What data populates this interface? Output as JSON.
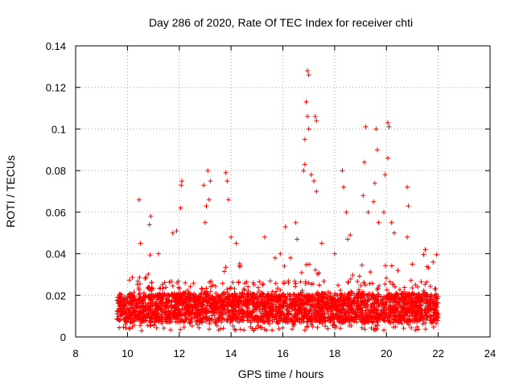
{
  "chart_data": {
    "type": "scatter",
    "title": "Day 286 of 2020, Rate Of TEC Index for receiver chti",
    "xlabel": "GPS time / hours",
    "ylabel": "ROTI / TECUs",
    "xlim": [
      8,
      24
    ],
    "ylim": [
      0,
      0.14
    ],
    "xticks": [
      8,
      10,
      12,
      14,
      16,
      18,
      20,
      22,
      24
    ],
    "yticks": [
      0,
      0.02,
      0.04,
      0.06,
      0.08,
      0.1,
      0.12,
      0.14
    ],
    "xtick_labels": [
      "8",
      "10",
      "12",
      "14",
      "16",
      "18",
      "20",
      "22",
      "24"
    ],
    "ytick_labels": [
      "0",
      "0.02",
      "0.04",
      "0.06",
      "0.08",
      "0.1",
      "0.12",
      "0.14"
    ],
    "grid": true,
    "marker": "+",
    "color": "#ff0000",
    "series": [
      {
        "name": "ROTI",
        "points": [
          [
            10.45,
            0.066
          ],
          [
            10.9,
            0.058
          ],
          [
            10.85,
            0.054
          ],
          [
            11.75,
            0.05
          ],
          [
            11.9,
            0.051
          ],
          [
            12.1,
            0.075
          ],
          [
            12.08,
            0.073
          ],
          [
            12.05,
            0.062
          ],
          [
            12.95,
            0.073
          ],
          [
            13.1,
            0.08
          ],
          [
            13.2,
            0.075
          ],
          [
            13.05,
            0.063
          ],
          [
            13.0,
            0.055
          ],
          [
            13.15,
            0.066
          ],
          [
            13.8,
            0.079
          ],
          [
            13.85,
            0.075
          ],
          [
            13.9,
            0.066
          ],
          [
            14.0,
            0.048
          ],
          [
            15.3,
            0.048
          ],
          [
            15.7,
            0.038
          ],
          [
            16.1,
            0.053
          ],
          [
            16.5,
            0.055
          ],
          [
            16.55,
            0.047
          ],
          [
            16.8,
            0.08
          ],
          [
            16.85,
            0.083
          ],
          [
            16.95,
            0.128
          ],
          [
            17.0,
            0.126
          ],
          [
            16.9,
            0.113
          ],
          [
            16.95,
            0.106
          ],
          [
            17.0,
            0.1
          ],
          [
            16.85,
            0.095
          ],
          [
            17.25,
            0.106
          ],
          [
            17.3,
            0.104
          ],
          [
            17.1,
            0.078
          ],
          [
            17.2,
            0.075
          ],
          [
            17.3,
            0.07
          ],
          [
            17.5,
            0.045
          ],
          [
            18.3,
            0.08
          ],
          [
            18.35,
            0.072
          ],
          [
            18.45,
            0.06
          ],
          [
            18.5,
            0.047
          ],
          [
            18.6,
            0.049
          ],
          [
            19.1,
            0.068
          ],
          [
            19.2,
            0.101
          ],
          [
            19.15,
            0.084
          ],
          [
            19.3,
            0.06
          ],
          [
            19.6,
            0.1
          ],
          [
            19.65,
            0.09
          ],
          [
            19.55,
            0.074
          ],
          [
            19.5,
            0.065
          ],
          [
            19.7,
            0.055
          ],
          [
            20.05,
            0.103
          ],
          [
            20.1,
            0.101
          ],
          [
            20.05,
            0.086
          ],
          [
            19.95,
            0.078
          ],
          [
            19.9,
            0.06
          ],
          [
            20.2,
            0.055
          ],
          [
            20.8,
            0.072
          ],
          [
            20.85,
            0.063
          ],
          [
            20.3,
            0.05
          ],
          [
            20.8,
            0.048
          ],
          [
            21.5,
            0.042
          ],
          [
            10.5,
            0.045
          ],
          [
            11.2,
            0.04
          ],
          [
            14.2,
            0.045
          ],
          [
            15.9,
            0.04
          ],
          [
            16.3,
            0.038
          ],
          [
            18.0,
            0.04
          ],
          [
            21.0,
            0.035
          ],
          [
            21.8,
            0.036
          ]
        ]
      }
    ],
    "bulk_band": {
      "description": "dense background band of ROTI samples from 9.6 to 22.0 hours",
      "x_range": [
        9.6,
        22.0
      ],
      "typical_range": [
        0.003,
        0.03
      ],
      "segments": [
        {
          "x": [
            9.6,
            10.3
          ],
          "peak": 0.03
        },
        {
          "x": [
            10.3,
            11.0
          ],
          "peak": 0.04
        },
        {
          "x": [
            11.0,
            12.6
          ],
          "peak": 0.028
        },
        {
          "x": [
            12.6,
            13.7
          ],
          "peak": 0.025
        },
        {
          "x": [
            13.7,
            14.5
          ],
          "peak": 0.04
        },
        {
          "x": [
            14.5,
            15.9
          ],
          "peak": 0.025
        },
        {
          "x": [
            15.9,
            17.6
          ],
          "peak": 0.035
        },
        {
          "x": [
            17.6,
            18.8
          ],
          "peak": 0.03
        },
        {
          "x": [
            18.8,
            21.2
          ],
          "peak": 0.035
        },
        {
          "x": [
            21.2,
            22.0
          ],
          "peak": 0.04
        }
      ]
    }
  }
}
